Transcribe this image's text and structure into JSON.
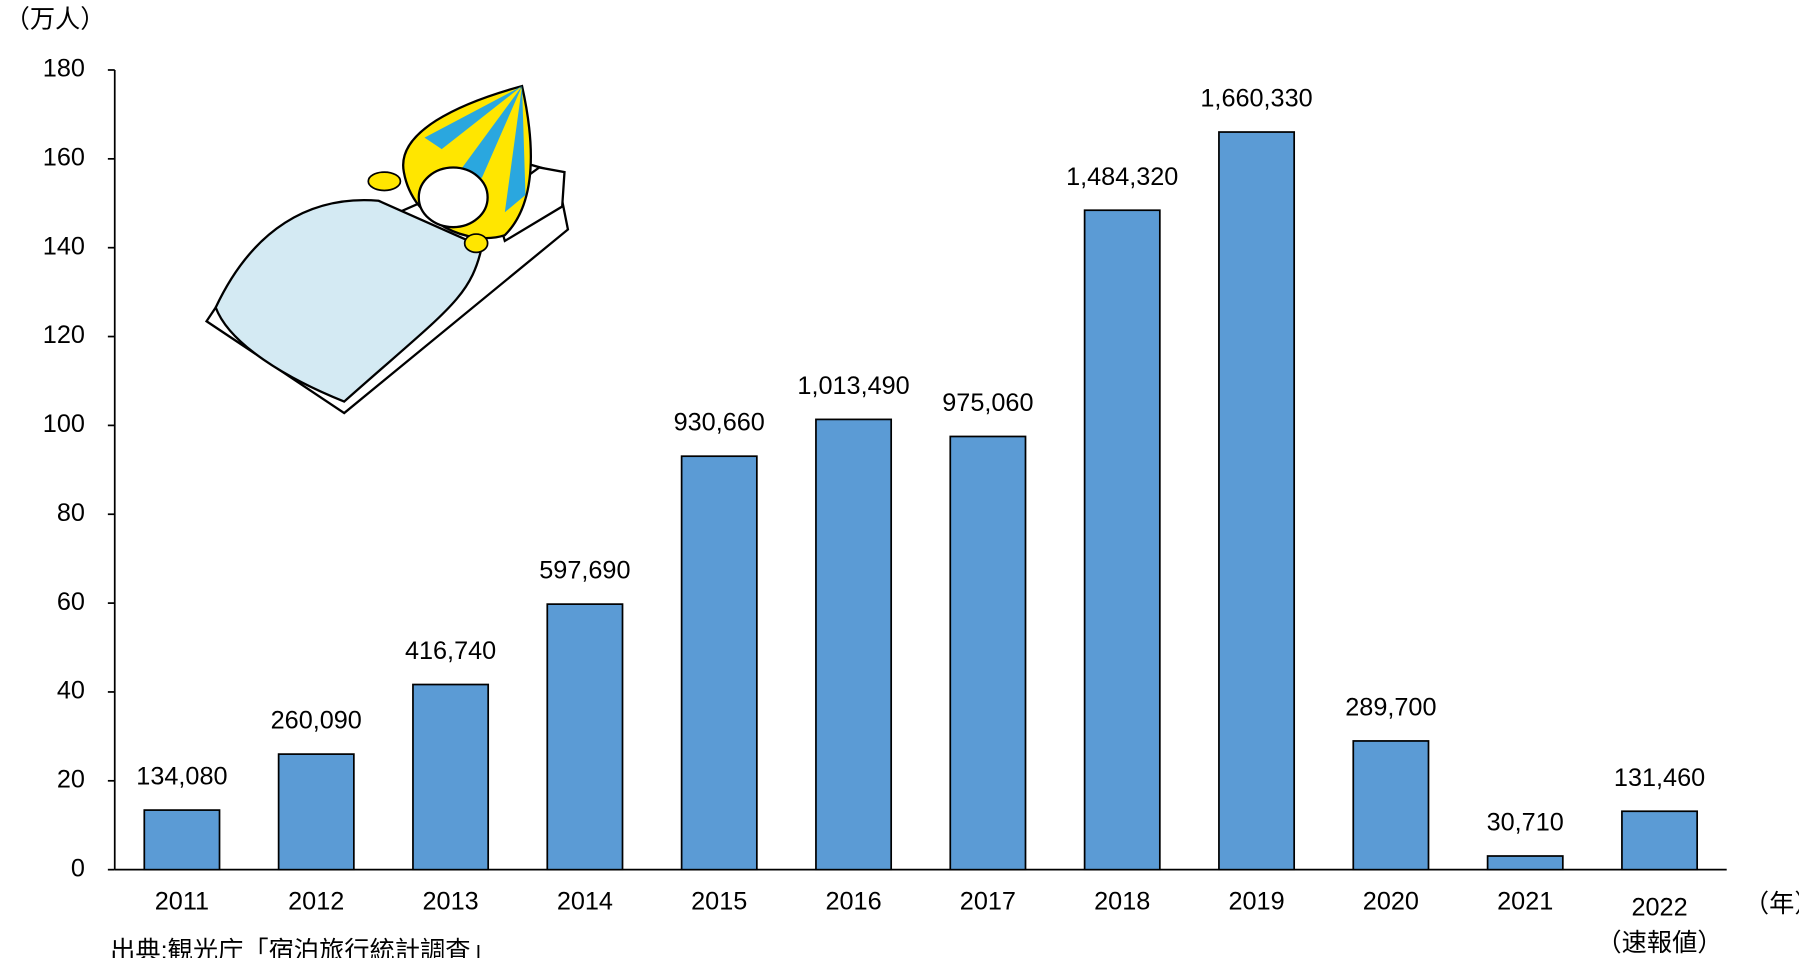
{
  "chart_data": {
    "type": "bar",
    "y_unit_label": "（万人）",
    "x_unit_label": "（年）",
    "source": "出典:観光庁「宿泊旅行統計調査」",
    "categories": [
      "2011",
      "2012",
      "2013",
      "2014",
      "2015",
      "2016",
      "2017",
      "2018",
      "2019",
      "2020",
      "2021",
      "2022"
    ],
    "category_note": "（速報値）",
    "values": [
      13.408,
      26.009,
      41.674,
      59.769,
      93.066,
      101.349,
      97.506,
      148.432,
      166.033,
      28.97,
      3.071,
      13.146
    ],
    "value_labels": [
      "134,080",
      "260,090",
      "416,740",
      "597,690",
      "930,660",
      "1,013,490",
      "975,060",
      "1,484,320",
      "1,660,330",
      "289,700",
      "30,710",
      "131,460"
    ],
    "color": "#5b9bd5",
    "ylim": [
      0,
      180
    ],
    "yticks": [
      0,
      20,
      40,
      60,
      80,
      100,
      120,
      140,
      160,
      180
    ],
    "grid": false
  }
}
